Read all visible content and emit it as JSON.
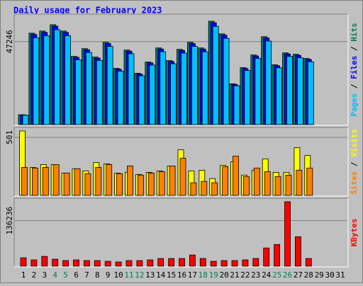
{
  "title": "Daily usage for February 2023",
  "legend_separator": " / ",
  "chart_data": [
    {
      "type": "bar",
      "categories": [
        "1",
        "2",
        "3",
        "4",
        "5",
        "6",
        "7",
        "8",
        "9",
        "10",
        "11",
        "12",
        "13",
        "14",
        "15",
        "16",
        "17",
        "18",
        "19",
        "20",
        "21",
        "22",
        "23",
        "24",
        "25",
        "26",
        "27",
        "28",
        "29",
        "30",
        "31"
      ],
      "category_colors": [
        "#000000",
        "#000000",
        "#000000",
        "#00805c",
        "#00805c",
        "#000000",
        "#000000",
        "#000000",
        "#000000",
        "#000000",
        "#00805c",
        "#00805c",
        "#000000",
        "#000000",
        "#000000",
        "#000000",
        "#000000",
        "#00805c",
        "#00805c",
        "#000000",
        "#000000",
        "#000000",
        "#000000",
        "#000000",
        "#00805c",
        "#00805c",
        "#000000",
        "#000000",
        "#000000",
        "#000000",
        "#000000"
      ],
      "ylim": [
        0,
        62460
      ],
      "yticks": [
        47246
      ],
      "grid": true,
      "series": [
        {
          "name": "Hits",
          "color": "#00805c",
          "values": [
            5606,
            52050,
            53250,
            56860,
            53250,
            38840,
            43240,
            38440,
            46850,
            32030,
            42440,
            29230,
            35640,
            43640,
            36440,
            42840,
            46850,
            43640,
            58860,
            51650,
            23220,
            32430,
            39640,
            50050,
            34030,
            40840,
            40040,
            37640,
            null,
            null,
            null
          ]
        },
        {
          "name": "Files",
          "color": "#0000ff",
          "values": [
            5520,
            51270,
            52450,
            56010,
            52450,
            38260,
            42590,
            37860,
            46150,
            31550,
            41800,
            28790,
            35100,
            42990,
            35890,
            42200,
            46150,
            42990,
            57980,
            50880,
            22870,
            31940,
            39050,
            49300,
            33520,
            40230,
            39440,
            37080,
            null,
            null,
            null
          ]
        },
        {
          "name": "Pages",
          "color": "#00c0ff",
          "values": [
            5330,
            49450,
            50590,
            54020,
            50590,
            36900,
            41080,
            36520,
            44510,
            30430,
            40320,
            27770,
            33860,
            41460,
            34620,
            40700,
            44510,
            41460,
            55920,
            49070,
            22060,
            30810,
            37660,
            47550,
            32330,
            38800,
            38040,
            35760,
            null,
            null,
            null
          ]
        }
      ]
    },
    {
      "type": "bar",
      "ylim": [
        0,
        580
      ],
      "yticks": [
        501
      ],
      "grid": true,
      "series": [
        {
          "name": "Visits",
          "color": "#ffff00",
          "values": [
            556,
            242,
            266,
            266,
            193,
            230,
            211,
            284,
            272,
            193,
            199,
            181,
            199,
            211,
            254,
            393,
            211,
            217,
            145,
            260,
            290,
            175,
            217,
            314,
            199,
            199,
            411,
            344,
            null,
            null,
            null
          ]
        },
        {
          "name": "Sites",
          "color": "#ff8000",
          "values": [
            242,
            236,
            242,
            266,
            193,
            230,
            187,
            242,
            266,
            187,
            254,
            175,
            193,
            205,
            254,
            320,
            109,
            121,
            109,
            248,
            338,
            163,
            236,
            205,
            163,
            175,
            217,
            236,
            null,
            null,
            null
          ]
        }
      ]
    },
    {
      "type": "bar",
      "ylim": [
        0,
        201210
      ],
      "yticks": [
        136236
      ],
      "grid": true,
      "series": [
        {
          "name": "KBytes",
          "color": "#ff0000",
          "values": [
            25150,
            18860,
            29340,
            20960,
            16770,
            18860,
            16770,
            16770,
            14670,
            12580,
            16770,
            16770,
            18860,
            23060,
            23060,
            23060,
            33540,
            23060,
            14670,
            16770,
            16770,
            18860,
            23060,
            54500,
            64980,
            192830,
            88030,
            23060,
            null,
            null,
            null
          ]
        }
      ]
    }
  ]
}
